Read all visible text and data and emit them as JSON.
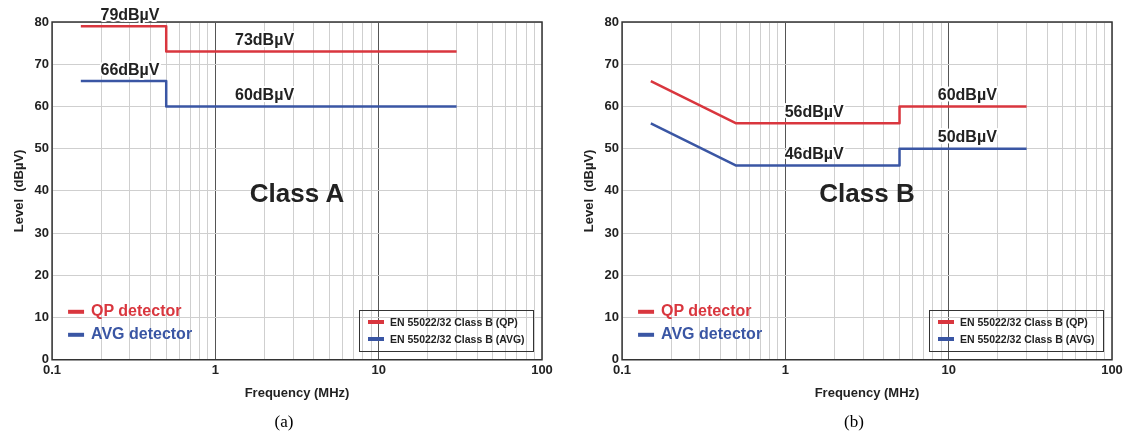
{
  "chart_data": [
    {
      "type": "line",
      "xlabel": "Frequency (MHz)",
      "ylabel": "Level  (dBµV)",
      "log": "x",
      "grid": true,
      "legend": "bottom left",
      "marker": "none",
      "line_style": "solid",
      "xlim": [
        0.1,
        100
      ],
      "ylim": [
        0,
        80
      ],
      "xticks": [
        0.1,
        {
          "value": 0.2,
          "label": null
        },
        {
          "value": 0.3,
          "label": null
        },
        {
          "value": 0.4,
          "label": null
        },
        {
          "value": 0.5,
          "label": null
        },
        {
          "value": 0.6,
          "label": null
        },
        {
          "value": 0.7,
          "label": null
        },
        {
          "value": 0.8,
          "label": null
        },
        {
          "value": 0.9,
          "label": null
        },
        1,
        {
          "value": 2,
          "label": null
        },
        {
          "value": 3,
          "label": null
        },
        {
          "value": 4,
          "label": null
        },
        {
          "value": 5,
          "label": null
        },
        {
          "value": 6,
          "label": null
        },
        {
          "value": 7,
          "label": null
        },
        {
          "value": 8,
          "label": null
        },
        {
          "value": 9,
          "label": null
        },
        10,
        {
          "value": 20,
          "label": null
        },
        {
          "value": 30,
          "label": null
        },
        {
          "value": 40,
          "label": null
        },
        {
          "value": 50,
          "label": null
        },
        {
          "value": 60,
          "label": null
        },
        {
          "value": 70,
          "label": null
        },
        {
          "value": 80,
          "label": null
        },
        {
          "value": 90,
          "label": null
        },
        100
      ],
      "yticks": [
        0,
        10,
        20,
        30,
        40,
        50,
        60,
        70,
        80
      ],
      "series": [
        {
          "name": "QP detector",
          "color": "#d9363e",
          "x": [
            0.15,
            0.5,
            0.5,
            30
          ],
          "values": [
            79,
            79,
            73,
            73
          ]
        },
        {
          "name": "AVG detector",
          "color": "#3a56a4",
          "x": [
            0.15,
            0.5,
            0.5,
            30
          ],
          "values": [
            66,
            66,
            60,
            60
          ]
        }
      ],
      "annotations": [
        {
          "text": "79dBµV",
          "x": 0.3,
          "y": 79
        },
        {
          "text": "73dBµV",
          "x": 2,
          "y": 73
        },
        {
          "text": "66dBµV",
          "x": 0.3,
          "y": 66
        },
        {
          "text": "60dBµV",
          "x": 2,
          "y": 60
        },
        "Class A",
        "EN 55022/32 Class B (QP)",
        "EN 55022/32 Class B (AVG)",
        "(a)"
      ]
    },
    {
      "type": "line",
      "xlabel": "Frequency (MHz)",
      "ylabel": "Level  (dBµV)",
      "log": "x",
      "grid": true,
      "legend": "bottom left",
      "marker": "none",
      "line_style": "solid",
      "xlim": [
        0.1,
        100
      ],
      "ylim": [
        0,
        80
      ],
      "xticks": [
        0.1,
        {
          "value": 0.2,
          "label": null
        },
        {
          "value": 0.3,
          "label": null
        },
        {
          "value": 0.4,
          "label": null
        },
        {
          "value": 0.5,
          "label": null
        },
        {
          "value": 0.6,
          "label": null
        },
        {
          "value": 0.7,
          "label": null
        },
        {
          "value": 0.8,
          "label": null
        },
        {
          "value": 0.9,
          "label": null
        },
        1,
        {
          "value": 2,
          "label": null
        },
        {
          "value": 3,
          "label": null
        },
        {
          "value": 4,
          "label": null
        },
        {
          "value": 5,
          "label": null
        },
        {
          "value": 6,
          "label": null
        },
        {
          "value": 7,
          "label": null
        },
        {
          "value": 8,
          "label": null
        },
        {
          "value": 9,
          "label": null
        },
        10,
        {
          "value": 20,
          "label": null
        },
        {
          "value": 30,
          "label": null
        },
        {
          "value": 40,
          "label": null
        },
        {
          "value": 50,
          "label": null
        },
        {
          "value": 60,
          "label": null
        },
        {
          "value": 70,
          "label": null
        },
        {
          "value": 80,
          "label": null
        },
        {
          "value": 90,
          "label": null
        },
        100
      ],
      "yticks": [
        0,
        10,
        20,
        30,
        40,
        50,
        60,
        70,
        80
      ],
      "series": [
        {
          "name": "QP detector",
          "color": "#d9363e",
          "x": [
            0.15,
            0.5,
            5,
            5,
            30
          ],
          "values": [
            66,
            56,
            56,
            60,
            60
          ]
        },
        {
          "name": "AVG detector",
          "color": "#3a56a4",
          "x": [
            0.15,
            0.5,
            5,
            5,
            30
          ],
          "values": [
            56,
            46,
            46,
            50,
            50
          ]
        }
      ],
      "annotations": [
        {
          "text": "56dBµV",
          "x": 1.5,
          "y": 56
        },
        {
          "text": "60dBµV",
          "x": 13,
          "y": 60
        },
        {
          "text": "46dBµV",
          "x": 1.5,
          "y": 46
        },
        {
          "text": "50dBµV",
          "x": 13,
          "y": 50
        },
        "Class B",
        "EN 55022/32 Class B (QP)",
        "EN 55022/32 Class B (AVG)",
        "(b)"
      ]
    }
  ]
}
